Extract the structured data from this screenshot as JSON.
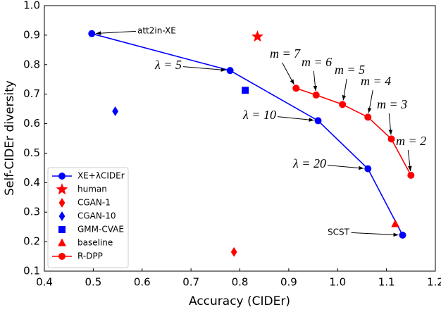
{
  "chart_data": {
    "type": "scatter",
    "xlabel": "Accuracy (CIDEr)",
    "ylabel": "Self-CIDEr diversity",
    "xlim": [
      0.4,
      1.2
    ],
    "ylim": [
      0.1,
      1.0
    ],
    "xticks": [
      0.4,
      0.5,
      0.6,
      0.7,
      0.8,
      0.9,
      {
        "value": 1,
        "label": "1.0"
      },
      1.1,
      1.2
    ],
    "yticks": [
      0.1,
      0.2,
      0.3,
      0.4,
      0.5,
      0.6,
      0.7,
      0.8,
      0.9,
      {
        "value": 1,
        "label": "1.0"
      }
    ],
    "legend": "lower left",
    "series": [
      {
        "name": "XE+λCIDEr",
        "color": "#0000ff",
        "marker": "circle",
        "line": true,
        "x": [
          0.497,
          0.78,
          0.96,
          1.062,
          1.133
        ],
        "values": [
          0.905,
          0.78,
          0.61,
          0.447,
          0.222
        ]
      },
      {
        "name": "human",
        "color": "#ff0000",
        "marker": "star",
        "line": false,
        "x": [
          0.836
        ],
        "values": [
          0.895
        ]
      },
      {
        "name": "CGAN-1",
        "color": "#ff0000",
        "marker": "diamond",
        "line": false,
        "x": [
          0.788
        ],
        "values": [
          0.165
        ]
      },
      {
        "name": "CGAN-10",
        "color": "#0000ff",
        "marker": "diamond",
        "line": false,
        "x": [
          0.545
        ],
        "values": [
          0.642
        ]
      },
      {
        "name": "GMM-CVAE",
        "color": "#0000ff",
        "marker": "square",
        "line": false,
        "x": [
          0.811
        ],
        "values": [
          0.713
        ]
      },
      {
        "name": "baseline",
        "color": "#ff0000",
        "marker": "triangle",
        "line": false,
        "x": [
          1.118
        ],
        "values": [
          0.26
        ]
      },
      {
        "name": "R-DPP",
        "color": "#ff0000",
        "marker": "circle",
        "line": true,
        "x": [
          0.915,
          0.956,
          1.01,
          1.062,
          1.11,
          1.15
        ],
        "values": [
          0.72,
          0.697,
          0.665,
          0.622,
          0.548,
          0.425
        ]
      }
    ],
    "annotations": [
      "att2in-XE",
      "λ = 5",
      "λ = 10",
      "λ = 20",
      "SCST",
      "m = 7",
      "m = 6",
      "m = 5",
      "m = 4",
      "m = 3",
      "m = 2"
    ]
  }
}
